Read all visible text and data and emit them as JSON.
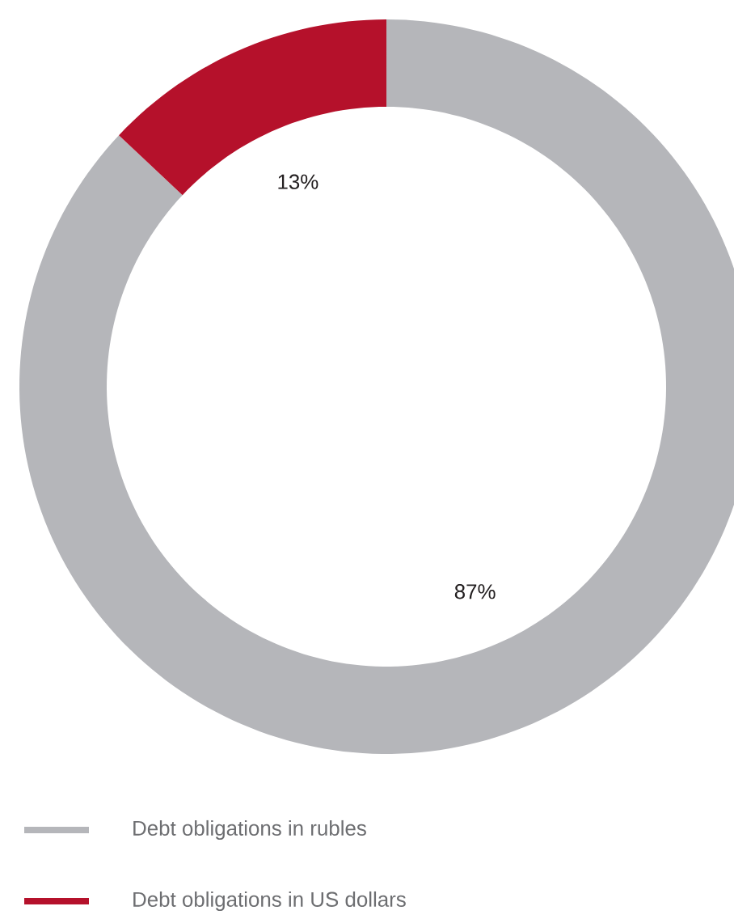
{
  "chart_data": {
    "type": "donut",
    "categories": [
      "Debt obligations in rubles",
      "Debt obligations in US dollars"
    ],
    "values": [
      87,
      13
    ],
    "colors": [
      "#b5b6ba",
      "#b5112b"
    ],
    "value_labels": [
      "87%",
      "13%"
    ],
    "legend": "bottom"
  }
}
